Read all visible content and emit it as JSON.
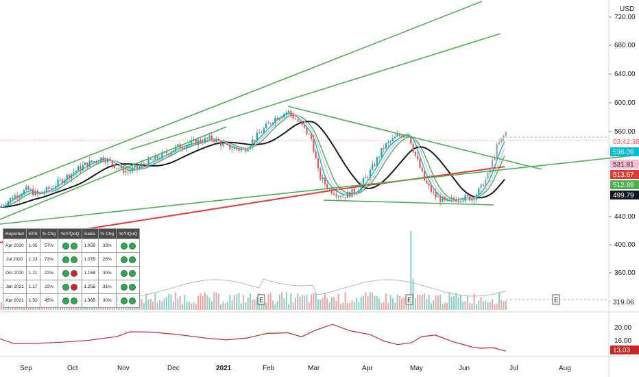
{
  "chart_data": {
    "type": "candlestick",
    "currency": "USD",
    "price_axis": {
      "ticks": [
        "720.00",
        "680.00",
        "640.00",
        "600.00",
        "560.00",
        "440.00",
        "400.00",
        "360.00",
        "320.00"
      ],
      "ylim_upper": [
        420,
        730
      ],
      "ylim_lower_panel": [
        307,
        420
      ]
    },
    "x_ticks": [
      "Sep",
      "Oct",
      "Nov",
      "Dec",
      "2021",
      "Feb",
      "Mar",
      "Apr",
      "May",
      "Jun",
      "Jul",
      "Aug"
    ],
    "price_labels": [
      {
        "text": "03:42:38",
        "value": 552,
        "color": "#ffffff",
        "bg": "#ef5350",
        "text_color": "#ef5350"
      },
      {
        "text": "536.09",
        "value": 536.09,
        "color": "#00bcd4"
      },
      {
        "text": "531.81",
        "value": 531.81,
        "color": "#f8bbd0"
      },
      {
        "text": "513.67",
        "value": 513.67,
        "color": "#e53935"
      },
      {
        "text": "512.89",
        "value": 512.89,
        "color": "#4caf50"
      },
      {
        "text": "499.79",
        "value": 499.79,
        "color": "#131722"
      },
      {
        "text": "319.06",
        "value": 319.06,
        "color": "#ffffff"
      }
    ],
    "indicator_panel": {
      "ticks": [
        "20.00",
        "16.00"
      ],
      "ylim": [
        11,
        23
      ],
      "last_value": "13.03",
      "series_color": "#c62828"
    },
    "series": [
      {
        "name": "MA fast",
        "color": "#00bcd4"
      },
      {
        "name": "MA medium",
        "color": "#4caf50"
      },
      {
        "name": "MA slow",
        "color": "#131722"
      },
      {
        "name": "MA long",
        "color": "#e53935"
      },
      {
        "name": "MA light",
        "color": "#e1bee7"
      }
    ],
    "trendlines": [
      {
        "from": [
          "2020-08-31",
          455
        ],
        "to": [
          "2021-06-25",
          735
        ],
        "color": "#4caf50"
      },
      {
        "from": [
          "2020-10-23",
          505
        ],
        "to": [
          "2021-06-25",
          695
        ],
        "color": "#4caf50"
      },
      {
        "from": [
          "2020-08-31",
          432
        ],
        "to": [
          "2021-08-15",
          535
        ],
        "color": "#4caf50"
      },
      {
        "from": [
          "2021-02-12",
          598
        ],
        "to": [
          "2021-07-14",
          520
        ],
        "color": "#4caf50"
      },
      {
        "from": [
          "2021-03-01",
          468
        ],
        "to": [
          "2021-06-25",
          465
        ],
        "color": "#4caf50"
      }
    ],
    "earnings_markers": [
      "E",
      "E",
      "E",
      "E",
      "E"
    ],
    "earnings_table": {
      "headers": [
        "Reported",
        "EPS",
        "% Chg",
        "YoY/QoQ",
        "Sales",
        "% Chg",
        "YoY/QoQ"
      ],
      "rows": [
        {
          "reported": "Apr 2020",
          "eps": "1.05",
          "eps_chg": "57%",
          "eps_dots": [
            "green",
            "green"
          ],
          "sales": "1.05B",
          "sales_chg": "33%",
          "sales_dots": [
            "green",
            "green"
          ]
        },
        {
          "reported": "Jul 2020",
          "eps": "1.23",
          "eps_chg": "73%",
          "eps_dots": [
            "green",
            "green"
          ],
          "sales": "1.07B",
          "sales_chg": "28%",
          "sales_dots": [
            "green",
            "green"
          ]
        },
        {
          "reported": "Oct 2020",
          "eps": "1.21",
          "eps_chg": "22%",
          "eps_dots": [
            "green",
            "red"
          ],
          "sales": "1.15B",
          "sales_chg": "30%",
          "sales_dots": [
            "green",
            "green"
          ]
        },
        {
          "reported": "Jan 2021",
          "eps": "1.17",
          "eps_chg": "22%",
          "eps_dots": [
            "green",
            "red"
          ],
          "sales": "1.25B",
          "sales_chg": "31%",
          "sales_dots": [
            "green",
            "green"
          ]
        },
        {
          "reported": "Apr 2021",
          "eps": "1.52",
          "eps_chg": "45%",
          "eps_dots": [
            "green",
            "green"
          ],
          "sales": "1.36B",
          "sales_chg": "30%",
          "sales_dots": [
            "green",
            "green"
          ]
        }
      ]
    }
  }
}
